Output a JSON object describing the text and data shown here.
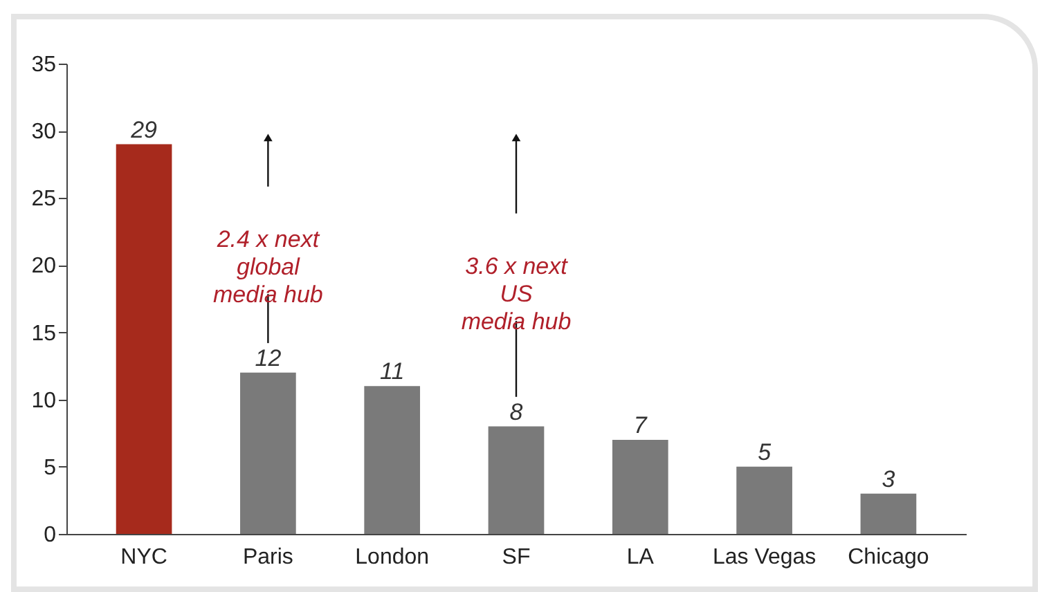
{
  "chart_data": {
    "type": "bar",
    "categories": [
      "NYC",
      "Paris",
      "London",
      "SF",
      "LA",
      "Las Vegas",
      "Chicago"
    ],
    "values": [
      29,
      12,
      11,
      8,
      7,
      5,
      3
    ],
    "colors": [
      "#a62a1c",
      "#7a7a7a",
      "#7a7a7a",
      "#7a7a7a",
      "#7a7a7a",
      "#7a7a7a",
      "#7a7a7a"
    ],
    "ylim": [
      0,
      35
    ],
    "yticks": [
      0,
      5,
      10,
      15,
      20,
      25,
      30,
      35
    ],
    "grid": false,
    "data_labels": true,
    "annotations": [
      "2.4 x next\nglobal\nmedia hub",
      "3.6 x next\nUS\nmedia hub"
    ]
  }
}
